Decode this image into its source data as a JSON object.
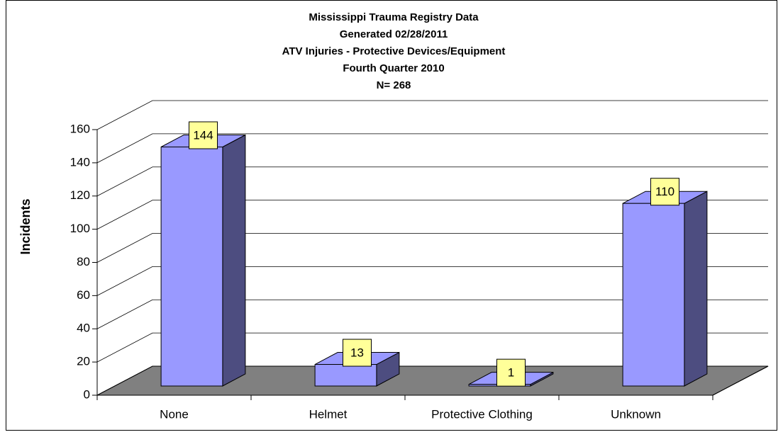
{
  "chart_data": {
    "type": "bar3d",
    "title": [
      "Mississippi Trauma Registry Data",
      "Generated 02/28/2011",
      "ATV Injuries - Protective Devices/Equipment",
      "Fourth Quarter 2010",
      "N= 268"
    ],
    "y_label": "Incidents",
    "categories": [
      "None",
      "Helmet",
      "Protective Clothing",
      "Unknown"
    ],
    "values": [
      144,
      13,
      1,
      110
    ],
    "color": "#9999ff",
    "ylim": [
      0,
      160
    ],
    "yticks": [
      0,
      20,
      40,
      60,
      80,
      100,
      120,
      140,
      160
    ],
    "grid": true
  }
}
